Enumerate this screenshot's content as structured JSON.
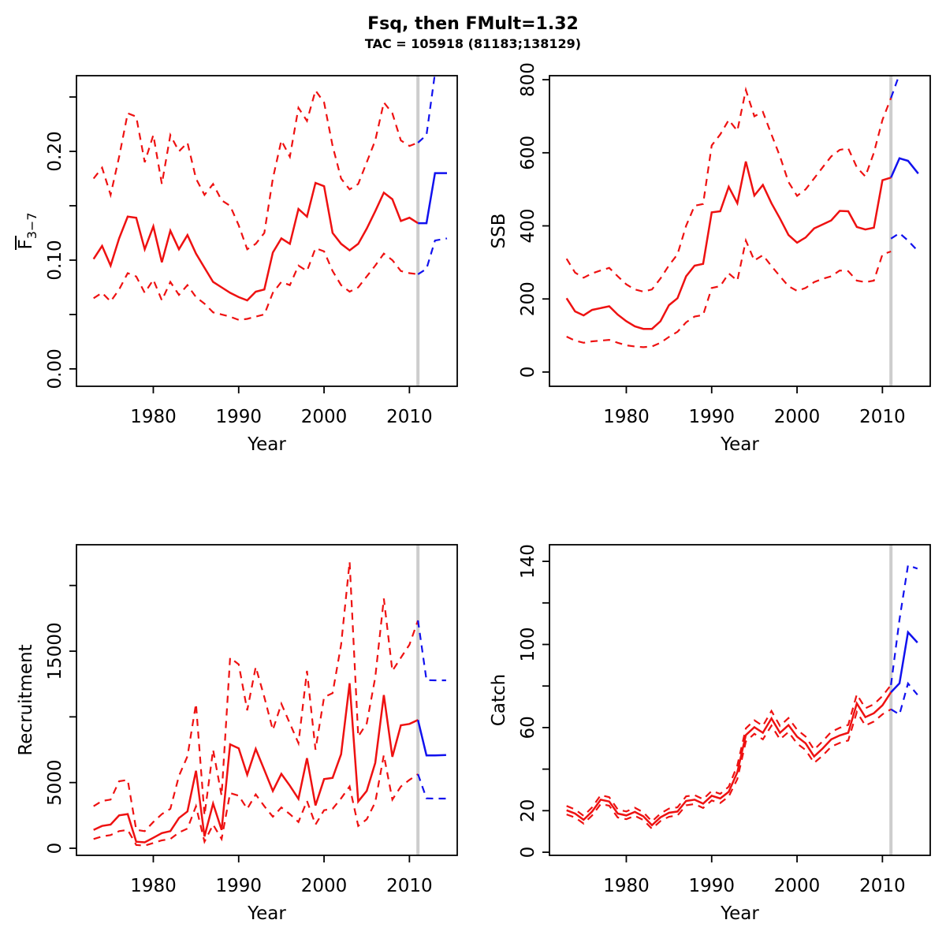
{
  "title": "Fsq, then FMult=1.32",
  "subtitle": "TAC = 105918 (81183;138129)",
  "projection_year": 2011,
  "colors": {
    "historic": "#ee1111",
    "projection": "#1111ee",
    "now_line": "#cdcdcd",
    "axis": "#000000",
    "background": "#ffffff"
  },
  "chart_data": [
    {
      "id": "fbar",
      "type": "line",
      "xlabel": "Year",
      "ylabel": {
        "text": "F",
        "overline": true,
        "sub": "3−7"
      },
      "xlim": [
        1971,
        2015.6
      ],
      "ylim": [
        -0.016,
        0.2696
      ],
      "xticks": [
        1980,
        1990,
        2000,
        2010
      ],
      "yticks": [
        [
          0,
          "0.00"
        ],
        [
          0.05,
          ""
        ],
        [
          0.1,
          "0.10"
        ],
        [
          0.15,
          ""
        ],
        [
          0.2,
          "0.20"
        ],
        [
          0.25,
          ""
        ]
      ],
      "x_start": 1973,
      "series": {
        "median": [
          0.101,
          0.113,
          0.095,
          0.12,
          0.14,
          0.139,
          0.11,
          0.131,
          0.098,
          0.127,
          0.11,
          0.123,
          0.106,
          0.093,
          0.08,
          0.075,
          0.07,
          0.066,
          0.063,
          0.071,
          0.073,
          0.107,
          0.12,
          0.115,
          0.147,
          0.14,
          0.171,
          0.168,
          0.125,
          0.115,
          0.109,
          0.115,
          0.129,
          0.145,
          0.162,
          0.156,
          0.136,
          0.139,
          0.134
        ],
        "upper": [
          0.175,
          0.185,
          0.16,
          0.195,
          0.235,
          0.232,
          0.19,
          0.215,
          0.17,
          0.215,
          0.2,
          0.208,
          0.175,
          0.16,
          0.17,
          0.155,
          0.15,
          0.132,
          0.11,
          0.115,
          0.125,
          0.175,
          0.21,
          0.195,
          0.24,
          0.228,
          0.256,
          0.245,
          0.205,
          0.175,
          0.165,
          0.17,
          0.19,
          0.21,
          0.245,
          0.235,
          0.21,
          0.205,
          0.208
        ],
        "lower": [
          0.065,
          0.07,
          0.062,
          0.073,
          0.088,
          0.085,
          0.07,
          0.082,
          0.063,
          0.08,
          0.068,
          0.077,
          0.066,
          0.06,
          0.052,
          0.05,
          0.048,
          0.045,
          0.046,
          0.048,
          0.05,
          0.07,
          0.08,
          0.077,
          0.095,
          0.09,
          0.111,
          0.108,
          0.09,
          0.077,
          0.071,
          0.075,
          0.085,
          0.095,
          0.106,
          0.1,
          0.09,
          0.088,
          0.087
        ]
      },
      "projection": {
        "x": [
          2011,
          2012,
          2013,
          2014.4
        ],
        "median": [
          0.134,
          0.134,
          0.18,
          0.18
        ],
        "upper": [
          0.208,
          0.215,
          0.272,
          0.272
        ],
        "lower": [
          0.087,
          0.092,
          0.118,
          0.12
        ]
      }
    },
    {
      "id": "ssb",
      "type": "line",
      "xlabel": "Year",
      "ylabel": {
        "text": "SSB"
      },
      "xlim": [
        1971,
        2015.6
      ],
      "ylim": [
        -39,
        811
      ],
      "xticks": [
        1980,
        1990,
        2000,
        2010
      ],
      "yticks": [
        [
          0,
          "0"
        ],
        [
          200,
          "200"
        ],
        [
          400,
          "400"
        ],
        [
          600,
          "600"
        ],
        [
          800,
          "800"
        ]
      ],
      "x_start": 1973,
      "series": {
        "median": [
          202,
          166,
          155,
          170,
          175,
          180,
          157,
          139,
          125,
          118,
          118,
          139,
          183,
          202,
          262,
          291,
          296,
          437,
          440,
          507,
          462,
          576,
          483,
          512,
          462,
          420,
          375,
          354,
          368,
          393,
          404,
          415,
          441,
          440,
          397,
          390,
          395,
          525,
          532
        ],
        "upper": [
          310,
          272,
          258,
          270,
          278,
          285,
          262,
          240,
          226,
          220,
          226,
          256,
          292,
          322,
          400,
          455,
          460,
          620,
          650,
          690,
          660,
          772,
          700,
          712,
          650,
          590,
          520,
          482,
          500,
          530,
          560,
          590,
          608,
          612,
          560,
          535,
          600,
          690,
          750
        ],
        "lower": [
          97,
          86,
          80,
          84,
          86,
          88,
          80,
          73,
          70,
          68,
          70,
          80,
          96,
          110,
          136,
          152,
          156,
          230,
          235,
          270,
          250,
          360,
          305,
          320,
          290,
          262,
          235,
          222,
          230,
          246,
          255,
          262,
          278,
          276,
          250,
          246,
          250,
          322,
          330
        ]
      },
      "projection": {
        "x": [
          2011,
          2012,
          2013,
          2014.2
        ],
        "median": [
          532,
          585,
          578,
          543
        ],
        "upper": [
          750,
          815,
          825,
          815
        ],
        "lower": [
          365,
          380,
          360,
          330
        ]
      }
    },
    {
      "id": "recruitment",
      "type": "line",
      "xlabel": "Year",
      "ylabel": {
        "text": "Recruitment"
      },
      "xlim": [
        1971,
        2015.6
      ],
      "ylim": [
        -540,
        23100
      ],
      "xticks": [
        1980,
        1990,
        2000,
        2010
      ],
      "yticks": [
        [
          0,
          "0"
        ],
        [
          5000,
          "5000"
        ],
        [
          10000,
          ""
        ],
        [
          15000,
          "15000"
        ],
        [
          20000,
          ""
        ]
      ],
      "x_start": 1973,
      "series": {
        "median": [
          1400,
          1700,
          1800,
          2500,
          2600,
          500,
          450,
          800,
          1150,
          1300,
          2300,
          2800,
          5900,
          900,
          3400,
          1400,
          7900,
          7600,
          5600,
          7560,
          5960,
          4360,
          5660,
          4760,
          3760,
          6860,
          3260,
          5260,
          5360,
          7160,
          12560,
          3560,
          4360,
          6500,
          11660,
          6960,
          9360,
          9460,
          9760
        ],
        "upper": [
          3200,
          3600,
          3700,
          5100,
          5200,
          1400,
          1300,
          2000,
          2600,
          3000,
          5500,
          7000,
          11000,
          2500,
          7500,
          4000,
          14500,
          14000,
          10500,
          13800,
          11500,
          9000,
          11000,
          9500,
          8000,
          13500,
          7500,
          11500,
          11800,
          15500,
          21800,
          8500,
          9500,
          13000,
          19000,
          13500,
          14500,
          15500,
          17340
        ],
        "lower": [
          700,
          900,
          1000,
          1300,
          1400,
          250,
          200,
          400,
          600,
          700,
          1200,
          1500,
          3200,
          500,
          1800,
          700,
          4200,
          4000,
          3000,
          4100,
          3200,
          2400,
          3100,
          2600,
          2000,
          3600,
          1800,
          2900,
          3000,
          3800,
          4700,
          1700,
          2200,
          3500,
          7100,
          3700,
          4700,
          5200,
          5640
        ]
      },
      "projection": {
        "x": [
          2011,
          2012,
          2013,
          2014.3
        ],
        "median": [
          9760,
          7060,
          7060,
          7100
        ],
        "upper": [
          17340,
          12800,
          12780,
          12780
        ],
        "lower": [
          5640,
          3800,
          3780,
          3780
        ]
      }
    },
    {
      "id": "catch",
      "type": "line",
      "xlabel": "Year",
      "ylabel": {
        "text": "Catch"
      },
      "xlim": [
        1971,
        2015.6
      ],
      "ylim": [
        -1.5,
        148
      ],
      "xticks": [
        1980,
        1990,
        2000,
        2010
      ],
      "yticks": [
        [
          0,
          "0"
        ],
        [
          20,
          "20"
        ],
        [
          40,
          ""
        ],
        [
          60,
          "60"
        ],
        [
          80,
          ""
        ],
        [
          100,
          "100"
        ],
        [
          120,
          ""
        ],
        [
          140,
          "140"
        ]
      ],
      "x_start": 1973,
      "series": {
        "median": [
          20.2,
          18.6,
          15.6,
          19.6,
          25.3,
          24.4,
          18.6,
          17.7,
          19.4,
          17.3,
          13.0,
          16.8,
          19.0,
          19.6,
          24.7,
          25.3,
          23.4,
          27.2,
          25.9,
          29.1,
          38.5,
          56.4,
          60.2,
          57.5,
          64.4,
          57.5,
          61.2,
          55.6,
          52.4,
          46.1,
          49.9,
          54.3,
          56.2,
          57.5,
          71.6,
          65.0,
          66.9,
          70.7,
          77.0
        ],
        "upper": [
          22.3,
          20.6,
          17.5,
          21.6,
          27.5,
          26.5,
          20.6,
          19.6,
          21.4,
          19.2,
          14.8,
          18.6,
          21.0,
          21.6,
          26.9,
          27.5,
          25.5,
          29.5,
          28.1,
          31.5,
          41.8,
          59.6,
          63.5,
          60.8,
          68.0,
          60.8,
          64.6,
          59.0,
          55.7,
          49.4,
          53.4,
          57.9,
          59.9,
          61.3,
          76.0,
          69.3,
          71.2,
          75.2,
          80.5
        ],
        "lower": [
          18.2,
          16.7,
          13.8,
          17.7,
          23.2,
          22.4,
          16.7,
          15.9,
          17.5,
          15.5,
          11.3,
          15.0,
          17.1,
          17.7,
          22.6,
          23.2,
          21.3,
          24.9,
          23.7,
          26.8,
          35.2,
          53.3,
          57.0,
          54.3,
          60.9,
          54.3,
          57.9,
          52.3,
          49.2,
          43.0,
          46.5,
          50.8,
          52.6,
          53.8,
          67.5,
          61.0,
          62.9,
          66.4,
          68.8
        ]
      },
      "projection": {
        "x": [
          2011,
          2012,
          2013,
          2014.1
        ],
        "median": [
          77.0,
          81.3,
          105.9,
          100.9
        ],
        "upper": [
          80.5,
          112.0,
          138.1,
          136.5
        ],
        "lower": [
          68.8,
          66.3,
          81.2,
          75.8
        ]
      }
    }
  ]
}
